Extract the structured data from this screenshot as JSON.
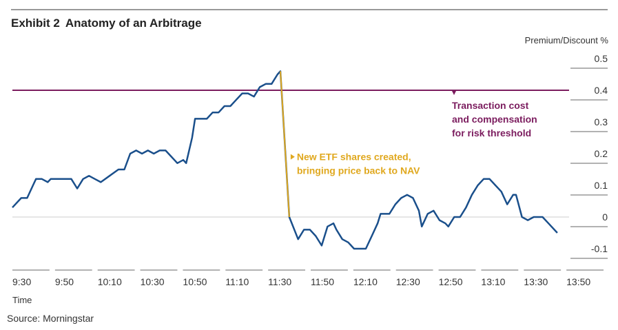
{
  "header": {
    "exhibit": "Exhibit 2",
    "title": "Anatomy of an Arbitrage"
  },
  "footer": {
    "source": "Source: Morningstar"
  },
  "colors": {
    "series": "#1a4f8b",
    "threshold": "#7b1c5e",
    "annotation_arrow": "#e0a81e",
    "axis_rule": "#999999"
  },
  "chart_data": {
    "type": "line",
    "xlabel": "Time",
    "ylabel": "Premium/Discount %",
    "ylim": [
      -0.1,
      0.5
    ],
    "yticks": [
      "0.5",
      "0.4",
      "0.3",
      "0.2",
      "0.1",
      "0",
      "-0.1"
    ],
    "xticks": [
      "9:30",
      "9:50",
      "10:10",
      "10:30",
      "10:50",
      "11:10",
      "11:30",
      "11:50",
      "12:10",
      "12:30",
      "12:50",
      "13:10",
      "13:30",
      "13:50"
    ],
    "threshold": 0.4,
    "series": [
      {
        "values": [
          [
            0,
            0.03
          ],
          [
            3,
            0.06
          ],
          [
            5,
            0.06
          ],
          [
            7,
            0.1
          ],
          [
            8,
            0.12
          ],
          [
            10,
            0.12
          ],
          [
            12,
            0.11
          ],
          [
            13,
            0.12
          ],
          [
            15,
            0.12
          ],
          [
            17,
            0.12
          ],
          [
            20,
            0.12
          ],
          [
            22,
            0.09
          ],
          [
            24,
            0.12
          ],
          [
            26,
            0.13
          ],
          [
            28,
            0.12
          ],
          [
            30,
            0.11
          ],
          [
            33,
            0.13
          ],
          [
            36,
            0.15
          ],
          [
            38,
            0.15
          ],
          [
            40,
            0.2
          ],
          [
            42,
            0.21
          ],
          [
            44,
            0.2
          ],
          [
            46,
            0.21
          ],
          [
            48,
            0.2
          ],
          [
            50,
            0.21
          ],
          [
            52,
            0.21
          ],
          [
            54,
            0.19
          ],
          [
            56,
            0.17
          ],
          [
            58,
            0.18
          ],
          [
            59,
            0.17
          ],
          [
            61,
            0.25
          ],
          [
            62,
            0.31
          ],
          [
            64,
            0.31
          ],
          [
            66,
            0.31
          ],
          [
            68,
            0.33
          ],
          [
            70,
            0.33
          ],
          [
            72,
            0.35
          ],
          [
            74,
            0.35
          ],
          [
            76,
            0.37
          ],
          [
            78,
            0.39
          ],
          [
            80,
            0.39
          ],
          [
            82,
            0.38
          ],
          [
            84,
            0.41
          ],
          [
            86,
            0.42
          ],
          [
            88,
            0.42
          ],
          [
            90,
            0.45
          ],
          [
            91,
            0.46
          ],
          [
            94,
            0.0
          ],
          [
            97,
            -0.07
          ],
          [
            99,
            -0.04
          ],
          [
            101,
            -0.04
          ],
          [
            103,
            -0.06
          ],
          [
            105,
            -0.09
          ],
          [
            107,
            -0.03
          ],
          [
            109,
            -0.02
          ],
          [
            110,
            -0.04
          ],
          [
            112,
            -0.07
          ],
          [
            114,
            -0.08
          ],
          [
            116,
            -0.1
          ],
          [
            118,
            -0.1
          ],
          [
            120,
            -0.1
          ],
          [
            122,
            -0.06
          ],
          [
            124,
            -0.02
          ],
          [
            125,
            0.01
          ],
          [
            128,
            0.01
          ],
          [
            130,
            0.04
          ],
          [
            132,
            0.06
          ],
          [
            134,
            0.07
          ],
          [
            136,
            0.06
          ],
          [
            138,
            0.02
          ],
          [
            139,
            -0.03
          ],
          [
            141,
            0.01
          ],
          [
            143,
            0.02
          ],
          [
            145,
            -0.01
          ],
          [
            147,
            -0.02
          ],
          [
            148,
            -0.03
          ],
          [
            150,
            0.0
          ],
          [
            152,
            0.0
          ],
          [
            154,
            0.03
          ],
          [
            156,
            0.07
          ],
          [
            158,
            0.1
          ],
          [
            160,
            0.12
          ],
          [
            162,
            0.12
          ],
          [
            164,
            0.1
          ],
          [
            166,
            0.08
          ],
          [
            168,
            0.04
          ],
          [
            170,
            0.07
          ],
          [
            171,
            0.07
          ],
          [
            173,
            0.0
          ],
          [
            175,
            -0.01
          ],
          [
            177,
            0.0
          ],
          [
            180,
            0.0
          ],
          [
            182,
            -0.02
          ],
          [
            185,
            -0.05
          ]
        ]
      }
    ],
    "annotations": {
      "arbitrage": [
        "New ETF shares created,",
        "bringing price back to NAV"
      ],
      "threshold": [
        "Transaction cost",
        "and compensation",
        "for risk threshold"
      ]
    }
  }
}
